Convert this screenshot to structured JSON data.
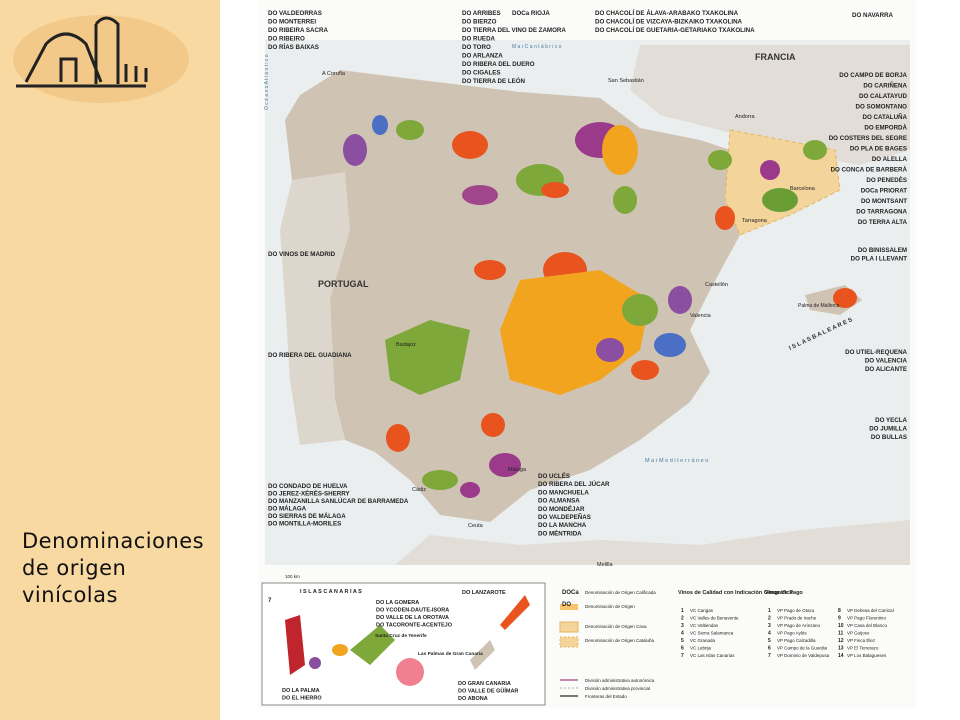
{
  "header": {
    "title_lines": [
      "Denominaciones",
      "de origen",
      "vinícolas"
    ]
  },
  "map": {
    "labels_left_top": [
      "DO VALDEORRAS",
      "DO MONTERREI",
      "DO RIBEIRA SACRA",
      "DO RIBEIRO",
      "DO RÍAS BAIXAS"
    ],
    "labels_top_mid": [
      "DO ARRIBES",
      "DO BIERZO",
      "DO TIERRA DEL VINO DE ZAMORA",
      "DO RUEDA",
      "DO TORO",
      "DO ARLANZA",
      "DO RIBERA DEL DUERO",
      "DO CIGALES",
      "DO TIERRA DE LEÓN"
    ],
    "label_rioja": "DOCa RIOJA",
    "labels_chacoli": [
      "DO CHACOLÍ DE ÁLAVA-ARABAKO TXAKOLINA",
      "DO CHACOLÍ DE VIZCAYA-BIZKAIKO TXAKOLINA",
      "DO CHACOLÍ DE GUETARIA-GETARIAKO TXAKOLINA"
    ],
    "label_navarra": "DO NAVARRA",
    "labels_northeast": [
      "DO CAMPO DE BORJA",
      "DO CARIÑENA",
      "DO CALATAYUD",
      "DO SOMONTANO",
      "DO CATALUÑA",
      "DO EMPORDÀ",
      "DO COSTERS DEL SEGRE",
      "DO PLA DE BAGES",
      "DO ALELLA",
      "DO CONCA DE BARBERÀ",
      "DO PENEDÈS",
      "DOCa PRIORAT",
      "DO MONTSANT",
      "DO TARRAGONA",
      "DO TERRA ALTA"
    ],
    "labels_baleares": [
      "DO BINISSALEM",
      "DO PLA I LLEVANT"
    ],
    "labels_levante": [
      "DO UTIEL-REQUENA",
      "DO VALENCIA",
      "DO ALICANTE"
    ],
    "labels_murcia": [
      "DO YECLA",
      "DO JUMILLA",
      "DO BULLAS"
    ],
    "label_madrid": "DO VINOS DE MADRID",
    "label_guadiana": "DO RIBERA DEL GUADIANA",
    "labels_south": [
      "DO CONDADO DE HUELVA",
      "DO JEREZ-XÉRÈS-SHERRY",
      "DO MANZANILLA SANLÚCAR DE BARRAMEDA",
      "DO MÁLAGA",
      "DO SIERRAS DE MÁLAGA",
      "DO MONTILLA-MORILES"
    ],
    "labels_center": [
      "DO UCLÉS",
      "DO RIBERA DEL JÚCAR",
      "DO MANCHUELA",
      "DO ALMANSA",
      "DO MONDÉJAR",
      "DO VALDEPEÑAS",
      "DO LA MANCHA",
      "DO MÉNTRIDA"
    ],
    "places": [
      "PORTUGAL",
      "FRANCIA",
      "Andorra",
      "M a r   C a n t á b r i c o",
      "M a r   M e d i t e r r á n e o",
      "O c é a n o   A t l á n t i c o",
      "I S L A S   B A L E A R E S",
      "A Coruña",
      "San Sebastián",
      "Castellón",
      "Valencia",
      "Palma de Mallorca",
      "Melilla",
      "Ceuta",
      "Cádiz",
      "Málaga",
      "Badajoz",
      "Tarragona",
      "Barcelona",
      "100 km"
    ]
  },
  "canarias": {
    "title": "I S L A S   C A N A R I A S",
    "labels": [
      "DO LA GOMERA",
      "DO YCODEN-DAUTE-ISORA",
      "DO VALLE DE LA OROTAVA",
      "DO TACORONTE-ACENTEJO"
    ],
    "lanzarote": "DO LANZAROTE",
    "tenerife": "Santa Cruz de Tenerife",
    "gran_canaria": "Las Palmas de Gran Canaria",
    "labels_bottom_left": [
      "DO LA PALMA",
      "DO EL HIERRO"
    ],
    "labels_bottom_right": [
      "DO GRAN CANARIA",
      "DO VALLE DE GÜÍMAR",
      "DO ABONA"
    ],
    "badge": "7"
  },
  "legend": {
    "types": [
      {
        "code": "DOCa",
        "text": "Denominación de Origen Calificada"
      },
      {
        "code": "DO",
        "text": "Denominación de Origen"
      },
      {
        "code": "",
        "text": "Denominación de Origen Cava"
      },
      {
        "code": "",
        "text": "Denominación de Origen Cataluña"
      }
    ],
    "borders": [
      "División administrativa autonómica",
      "División administrativa provincial",
      "Fronteras del Estado"
    ],
    "vc_title": "Vinos de Calidad con Indicación Geográfica",
    "vc": [
      {
        "n": "1",
        "name": "VC Cangas"
      },
      {
        "n": "2",
        "name": "VC Valles de Benavente"
      },
      {
        "n": "3",
        "name": "VC Valtiendas"
      },
      {
        "n": "4",
        "name": "VC Sierra Salamanca"
      },
      {
        "n": "5",
        "name": "VC Granada"
      },
      {
        "n": "6",
        "name": "VC Lebrija"
      },
      {
        "n": "7",
        "name": "VC Las Islas Canarias"
      }
    ],
    "vp_title": "Vinos de Pago",
    "vp": [
      {
        "n": "1",
        "name": "VP Pago de Otazu"
      },
      {
        "n": "2",
        "name": "VP Prado de Irache"
      },
      {
        "n": "3",
        "name": "VP Pago de Arínzano"
      },
      {
        "n": "4",
        "name": "VP Pago Aylés"
      },
      {
        "n": "5",
        "name": "VP Pago Calzadilla"
      },
      {
        "n": "6",
        "name": "VP Campo de la Guardia"
      },
      {
        "n": "7",
        "name": "VP Dominio de Valdepusa"
      },
      {
        "n": "8",
        "name": "VP Dehesa del Carrizal"
      },
      {
        "n": "9",
        "name": "VP Pago Florentino"
      },
      {
        "n": "10",
        "name": "VP Casa del Blanco"
      },
      {
        "n": "11",
        "name": "VP Guijoso"
      },
      {
        "n": "12",
        "name": "VP Finca Élez"
      },
      {
        "n": "13",
        "name": "VP El Terrerazo"
      },
      {
        "n": "14",
        "name": "VP Los Balagueses"
      }
    ]
  }
}
